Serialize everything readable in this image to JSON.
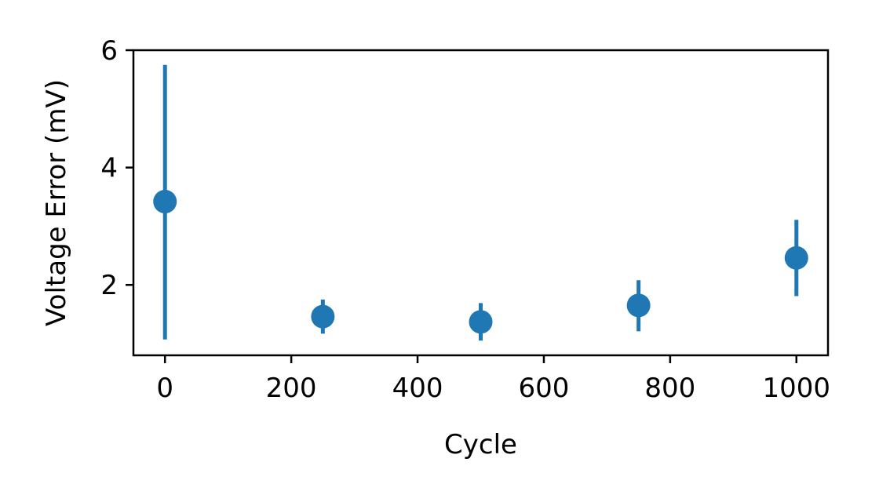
{
  "chart_data": {
    "type": "scatter",
    "title": "",
    "xlabel": "Cycle",
    "ylabel": "Voltage Error (mV)",
    "xlim": [
      -50,
      1050
    ],
    "ylim": [
      0.8,
      6.0
    ],
    "x_ticks": [
      0,
      200,
      400,
      600,
      800,
      1000
    ],
    "x_tick_labels": [
      "0",
      "200",
      "400",
      "600",
      "800",
      "1000"
    ],
    "y_ticks": [
      2,
      4,
      6
    ],
    "y_tick_labels": [
      "2",
      "4",
      "6"
    ],
    "grid": false,
    "series": [
      {
        "name": "Voltage Error",
        "color": "#1f77b4",
        "x": [
          0,
          250,
          500,
          750,
          1000
        ],
        "y": [
          3.42,
          1.46,
          1.37,
          1.65,
          2.46
        ],
        "err_low": [
          1.07,
          1.17,
          1.05,
          1.21,
          1.81
        ],
        "err_high": [
          5.75,
          1.75,
          1.69,
          2.08,
          3.11
        ]
      }
    ]
  }
}
